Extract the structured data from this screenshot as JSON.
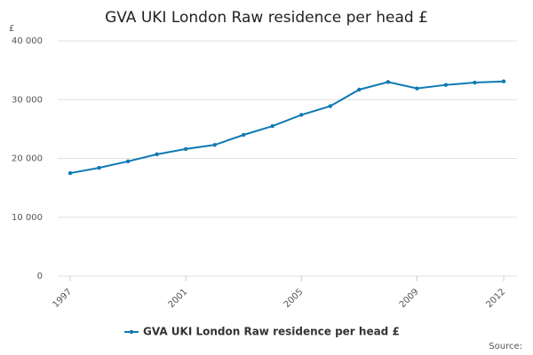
{
  "chart_data": {
    "type": "line",
    "title": "GVA UKI London Raw residence per head £",
    "y_label": "£",
    "source": "Source:",
    "x": [
      1997,
      1998,
      1999,
      2000,
      2001,
      2002,
      2003,
      2004,
      2005,
      2006,
      2007,
      2008,
      2009,
      2010,
      2011,
      2012
    ],
    "series": [
      {
        "name": "GVA UKI London Raw residence per head £",
        "color": "#0d79b4",
        "values": [
          17500,
          18400,
          19500,
          20700,
          21600,
          22300,
          24000,
          25500,
          27400,
          28900,
          31700,
          33000,
          31900,
          32500,
          32900,
          33100
        ]
      }
    ],
    "xlim": [
      1997,
      2012
    ],
    "xticks": [
      1997,
      2001,
      2005,
      2009,
      2012
    ],
    "ylim": [
      0,
      40000
    ],
    "yticks": [
      0,
      {
        "value": 10000,
        "label": "10 000"
      },
      {
        "value": 20000,
        "label": "20 000"
      },
      {
        "value": 30000,
        "label": "30 000"
      },
      {
        "value": 40000,
        "label": "40 000"
      }
    ],
    "grid": true
  }
}
